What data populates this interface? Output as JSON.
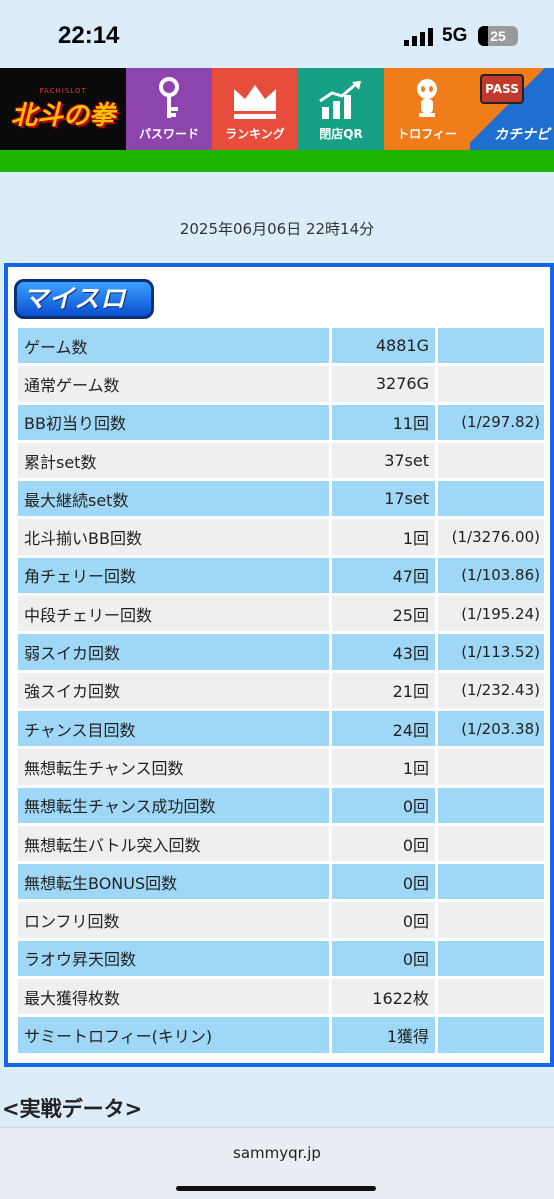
{
  "status": {
    "time": "22:14",
    "network": "5G",
    "battery": "25",
    "battery_level": 0.25
  },
  "nav": {
    "logo_sub": "PACHISLOT",
    "logo_main": "北斗の拳",
    "items": [
      {
        "label": "パスワード",
        "icon": "key-icon"
      },
      {
        "label": "ランキング",
        "icon": "crown-icon"
      },
      {
        "label": "閉店QR",
        "icon": "chart-up-icon"
      },
      {
        "label": "トロフィー",
        "icon": "trophy-figure-icon"
      }
    ],
    "kachi_badge": "PASS",
    "kachi_text": "カチナビ"
  },
  "date": "2025年06月06日 22時14分",
  "panel": {
    "logo": "マイスロ",
    "rows": [
      {
        "label": "ゲーム数",
        "value": "4881G",
        "ratio": ""
      },
      {
        "label": "通常ゲーム数",
        "value": "3276G",
        "ratio": ""
      },
      {
        "label": "BB初当り回数",
        "value": "11回",
        "ratio": "(1/297.82)"
      },
      {
        "label": "累計set数",
        "value": "37set",
        "ratio": ""
      },
      {
        "label": "最大継続set数",
        "value": "17set",
        "ratio": ""
      },
      {
        "label": "北斗揃いBB回数",
        "value": "1回",
        "ratio": "(1/3276.00)"
      },
      {
        "label": "角チェリー回数",
        "value": "47回",
        "ratio": "(1/103.86)"
      },
      {
        "label": "中段チェリー回数",
        "value": "25回",
        "ratio": "(1/195.24)"
      },
      {
        "label": "弱スイカ回数",
        "value": "43回",
        "ratio": "(1/113.52)"
      },
      {
        "label": "強スイカ回数",
        "value": "21回",
        "ratio": "(1/232.43)"
      },
      {
        "label": "チャンス目回数",
        "value": "24回",
        "ratio": "(1/203.38)"
      },
      {
        "label": "無想転生チャンス回数",
        "value": "1回",
        "ratio": ""
      },
      {
        "label": "無想転生チャンス成功回数",
        "value": "0回",
        "ratio": ""
      },
      {
        "label": "無想転生バトル突入回数",
        "value": "0回",
        "ratio": ""
      },
      {
        "label": "無想転生BONUS回数",
        "value": "0回",
        "ratio": ""
      },
      {
        "label": "ロンフリ回数",
        "value": "0回",
        "ratio": ""
      },
      {
        "label": "ラオウ昇天回数",
        "value": "0回",
        "ratio": ""
      },
      {
        "label": "最大獲得枚数",
        "value": "1622枚",
        "ratio": ""
      },
      {
        "label": "サミートロフィー(キリン)",
        "value": "1獲得",
        "ratio": ""
      }
    ]
  },
  "section_heading": "<実戦データ>",
  "url": "sammyqr.jp"
}
